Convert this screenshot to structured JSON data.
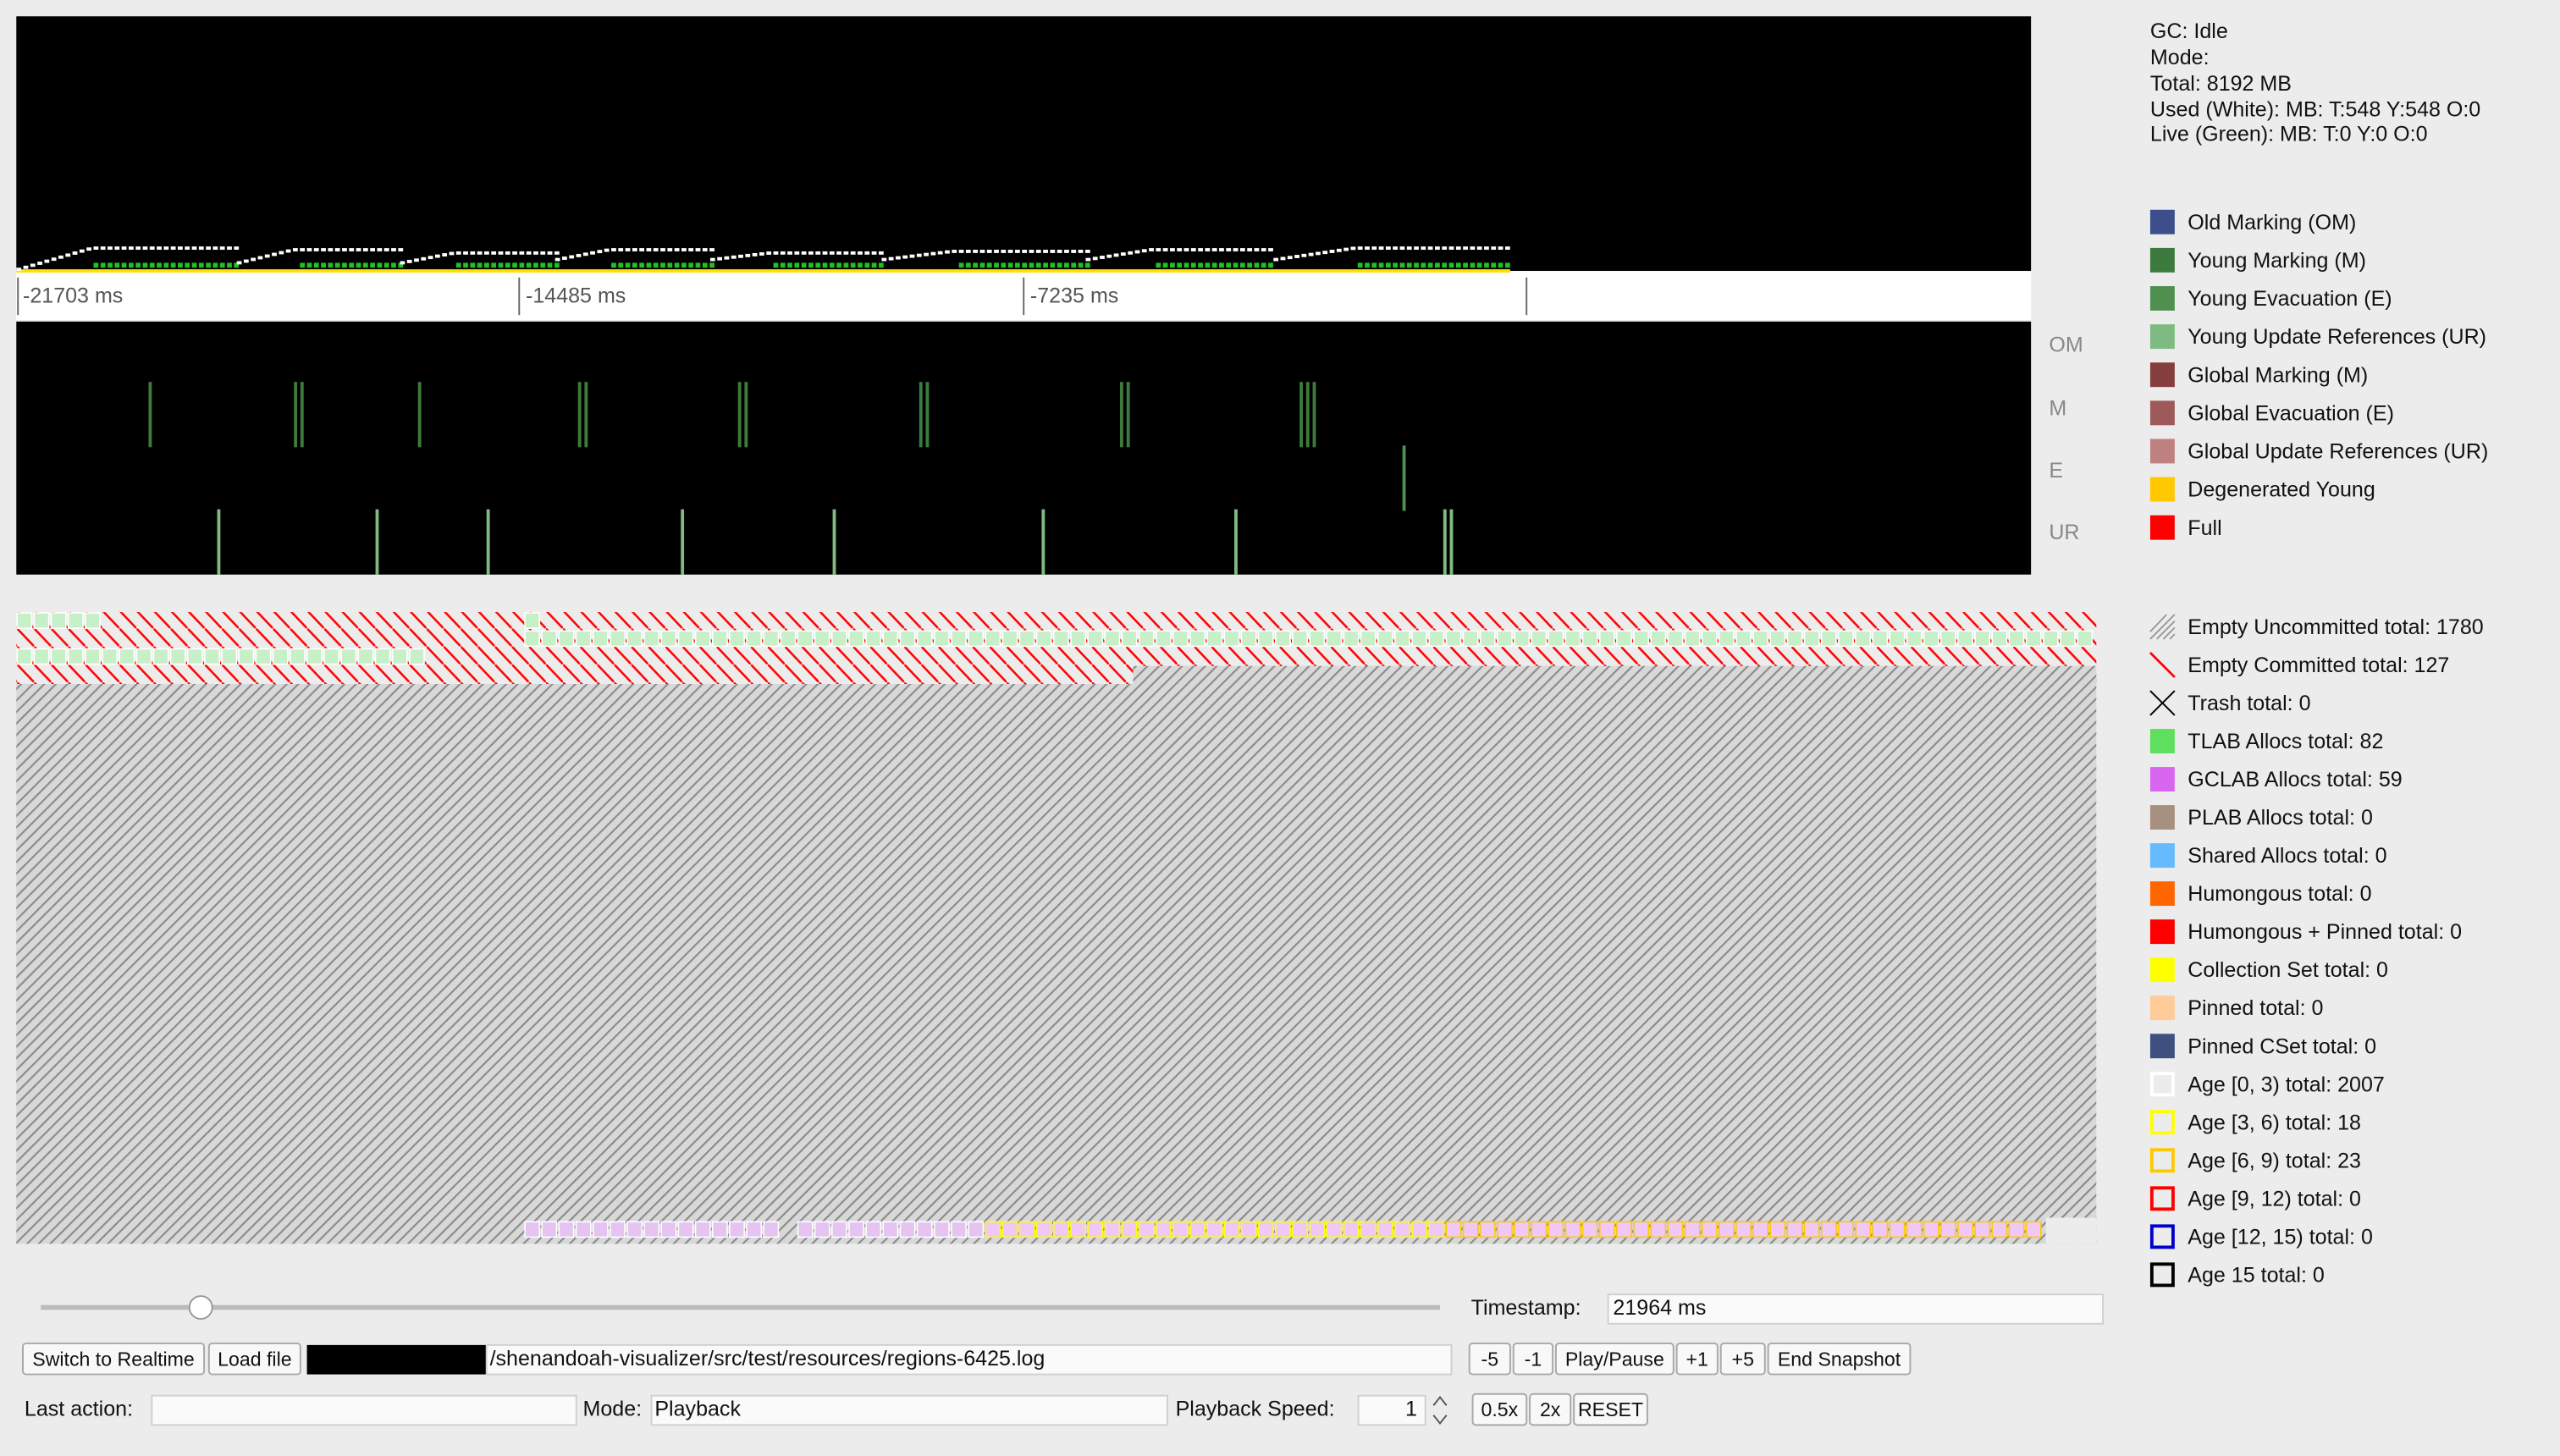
{
  "status": [
    "GC:  Idle",
    "Mode:",
    "Total: 8192 MB",
    "Used (White): MB: T:548 Y:548 O:0",
    "Live (Green): MB: T:0 Y:0 O:0"
  ],
  "timeline": [
    "-21703 ms",
    "-14485 ms",
    "-7235 ms"
  ],
  "phases": [
    "OM",
    "M",
    "E",
    "UR"
  ],
  "phase_legend": [
    {
      "label": "Old Marking (OM)",
      "color": "#3d4f8a"
    },
    {
      "label": "Young Marking (M)",
      "color": "#3d7a3d"
    },
    {
      "label": "Young Evacuation (E)",
      "color": "#4f9050"
    },
    {
      "label": "Young Update References (UR)",
      "color": "#7fbb80"
    },
    {
      "label": "Global Marking (M)",
      "color": "#853d3d"
    },
    {
      "label": "Global Evacuation (E)",
      "color": "#9e5a5a"
    },
    {
      "label": "Global Update References (UR)",
      "color": "#bf8080"
    },
    {
      "label": "Degenerated Young",
      "color": "#ffc800"
    },
    {
      "label": "Full",
      "color": "#ff0000"
    }
  ],
  "region_legend": [
    {
      "label": "Empty Uncommitted total: 1780",
      "color": "#999999",
      "style": "hatch"
    },
    {
      "label": "Empty Committed total: 127",
      "color": "#ff0000",
      "style": "slash"
    },
    {
      "label": "Trash total: 0",
      "color": "#000000",
      "style": "cross"
    },
    {
      "label": "TLAB Allocs total: 82",
      "color": "#5ee05e",
      "style": "fill"
    },
    {
      "label": "GCLAB Allocs total: 59",
      "color": "#d966f0",
      "style": "fill"
    },
    {
      "label": "PLAB Allocs total: 0",
      "color": "#a89080",
      "style": "fill"
    },
    {
      "label": "Shared Allocs total: 0",
      "color": "#66bbff",
      "style": "fill"
    },
    {
      "label": "Humongous total: 0",
      "color": "#ff6600",
      "style": "fill"
    },
    {
      "label": "Humongous + Pinned total: 0",
      "color": "#ff0000",
      "style": "fill"
    },
    {
      "label": "Collection Set total: 0",
      "color": "#ffff00",
      "style": "fill"
    },
    {
      "label": "Pinned total: 0",
      "color": "#ffcc99",
      "style": "fill"
    },
    {
      "label": "Pinned CSet total: 0",
      "color": "#3d5080",
      "style": "fill"
    },
    {
      "label": "Age [0, 3) total: 2007",
      "color": "#ffffff",
      "style": "outline"
    },
    {
      "label": "Age [3, 6) total: 18",
      "color": "#ffff00",
      "style": "outline"
    },
    {
      "label": "Age [6, 9) total: 23",
      "color": "#ffc800",
      "style": "outline"
    },
    {
      "label": "Age [9, 12) total: 0",
      "color": "#ff0000",
      "style": "outline"
    },
    {
      "label": "Age [12, 15) total: 0",
      "color": "#0000cc",
      "style": "outline"
    },
    {
      "label": "Age 15 total: 0",
      "color": "#000000",
      "style": "outline"
    }
  ],
  "controls": {
    "switch": "Switch to Realtime",
    "load": "Load file",
    "path": "/shenandoah-visualizer/src/test/resources/regions-6425.log",
    "timestamp_label": "Timestamp:",
    "timestamp": "21964 ms",
    "steps": [
      "-5",
      "-1",
      "Play/Pause",
      "+1",
      "+5",
      "End Snapshot"
    ],
    "last_action": "Last action:",
    "mode_label": "Mode:",
    "mode": "Playback",
    "speed_label": "Playback Speed:",
    "speed": "1",
    "speed_buttons": [
      "0.5x",
      "2x",
      "RESET"
    ]
  }
}
